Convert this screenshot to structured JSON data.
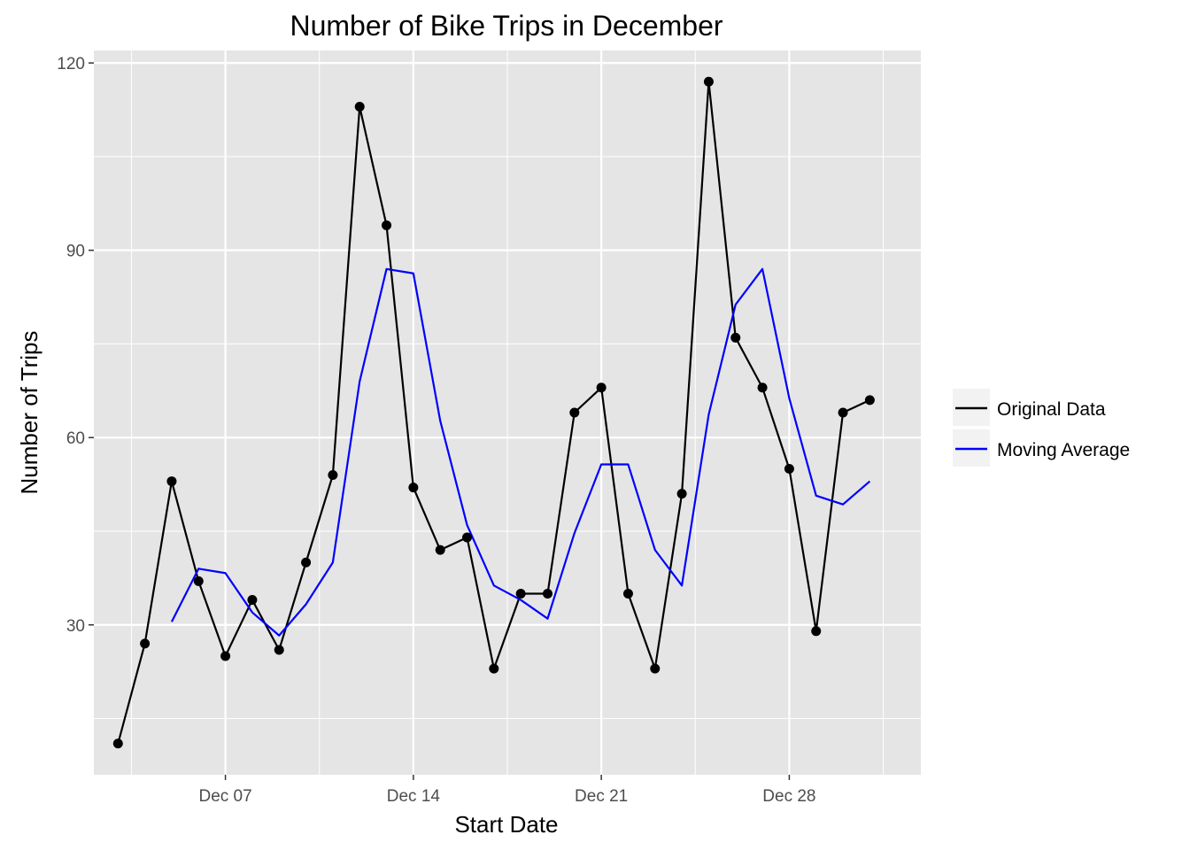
{
  "chart_data": {
    "type": "line",
    "title": "Number of Bike Trips in December",
    "xlabel": "Start Date",
    "ylabel": "Number of Trips",
    "x_ticks": [
      "Dec 07",
      "Dec 14",
      "Dec 21",
      "Dec 28"
    ],
    "x_tick_days": [
      7,
      14,
      21,
      28
    ],
    "y_ticks": [
      30,
      60,
      90,
      120
    ],
    "xlim": [
      2.1,
      32.9
    ],
    "ylim": [
      6,
      122
    ],
    "grid": true,
    "legend": {
      "placement": "right"
    },
    "series": [
      {
        "name": "Original Data",
        "color": "#000000",
        "markers": true,
        "points": [
          {
            "day": 3,
            "value": 11
          },
          {
            "day": 4,
            "value": 27
          },
          {
            "day": 5,
            "value": 53
          },
          {
            "day": 6,
            "value": 37
          },
          {
            "day": 7,
            "value": 25
          },
          {
            "day": 8,
            "value": 34
          },
          {
            "day": 9,
            "value": 26
          },
          {
            "day": 10,
            "value": 40
          },
          {
            "day": 11,
            "value": 54
          },
          {
            "day": 12,
            "value": 113
          },
          {
            "day": 13,
            "value": 94
          },
          {
            "day": 14,
            "value": 52
          },
          {
            "day": 15,
            "value": 42
          },
          {
            "day": 16,
            "value": 44
          },
          {
            "day": 17,
            "value": 23
          },
          {
            "day": 18,
            "value": 35
          },
          {
            "day": 19,
            "value": 35
          },
          {
            "day": 20,
            "value": 64
          },
          {
            "day": 21,
            "value": 68
          },
          {
            "day": 22,
            "value": 35
          },
          {
            "day": 23,
            "value": 23
          },
          {
            "day": 24,
            "value": 51
          },
          {
            "day": 25,
            "value": 117
          },
          {
            "day": 26,
            "value": 76
          },
          {
            "day": 27,
            "value": 68
          },
          {
            "day": 28,
            "value": 55
          },
          {
            "day": 29,
            "value": 29
          },
          {
            "day": 30,
            "value": 64
          },
          {
            "day": 31,
            "value": 66
          }
        ]
      },
      {
        "name": "Moving Average",
        "color": "#0000ff",
        "markers": false,
        "points": [
          {
            "day": 5,
            "value": 30.5
          },
          {
            "day": 6,
            "value": 39
          },
          {
            "day": 7,
            "value": 38.3
          },
          {
            "day": 8,
            "value": 32
          },
          {
            "day": 9,
            "value": 28.3
          },
          {
            "day": 10,
            "value": 33.3
          },
          {
            "day": 11,
            "value": 40
          },
          {
            "day": 12,
            "value": 69
          },
          {
            "day": 13,
            "value": 87
          },
          {
            "day": 14,
            "value": 86.3
          },
          {
            "day": 15,
            "value": 62.7
          },
          {
            "day": 16,
            "value": 46
          },
          {
            "day": 17,
            "value": 36.3
          },
          {
            "day": 18,
            "value": 34
          },
          {
            "day": 19,
            "value": 31
          },
          {
            "day": 20,
            "value": 44.7
          },
          {
            "day": 21,
            "value": 55.7
          },
          {
            "day": 22,
            "value": 55.7
          },
          {
            "day": 23,
            "value": 42
          },
          {
            "day": 24,
            "value": 36.3
          },
          {
            "day": 25,
            "value": 63.7
          },
          {
            "day": 26,
            "value": 81.3
          },
          {
            "day": 27,
            "value": 87
          },
          {
            "day": 28,
            "value": 66.3
          },
          {
            "day": 29,
            "value": 50.7
          },
          {
            "day": 30,
            "value": 49.3
          },
          {
            "day": 31,
            "value": 53
          }
        ]
      }
    ]
  }
}
